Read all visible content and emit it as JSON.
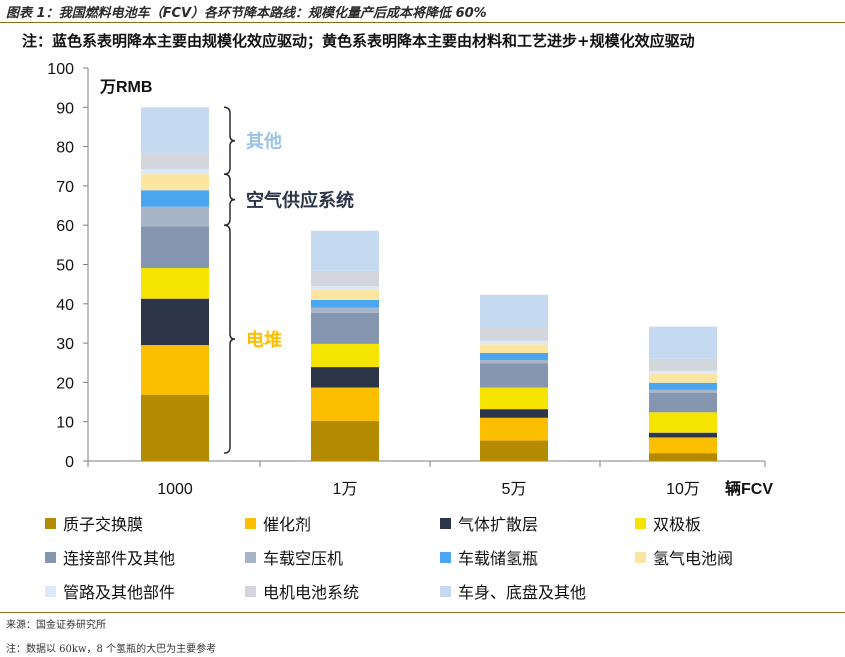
{
  "figure_title": "图表 1：我国燃料电池车（FCV）各环节降本路线：规模化量产后成本将降低 60%",
  "note": "注：蓝色系表明降本主要由规模化效应驱动；黄色系表明降本主要由材料和工艺进步+规模化效应驱动",
  "source": "来源：国金证券研究所",
  "footnote": "注：数据以 60kw，8 个氢瓶的大巴为主要参考",
  "colors": {
    "质子交换膜": "#b38a00",
    "催化剂": "#fbbf00",
    "气体扩散层": "#2d3648",
    "双极板": "#f5e300",
    "连接部件及其他": "#8597b0",
    "车载空压机": "#a8b4c8",
    "车载储氢瓶": "#4aa6f0",
    "氢气电池阀": "#fbe5a0",
    "管路及其他部件": "#dbe9f8",
    "电机电池系统": "#d3d6dc",
    "车身、底盘及其他": "#c5daf0",
    "bracket": "#2b2b2b",
    "label_other": "#9cc3ea",
    "label_air": "#2d3648",
    "label_stack": "#fbbf00"
  },
  "chart_data": {
    "type": "bar",
    "stacked": true,
    "categories": [
      "1000",
      "1万",
      "5万",
      "10万"
    ],
    "xlabel": "辆FCV",
    "ylabel": "万RMB",
    "ylim": [
      0,
      100
    ],
    "yticks": [
      0,
      10,
      20,
      30,
      40,
      50,
      60,
      70,
      80,
      90,
      100
    ],
    "series": [
      {
        "name": "质子交换膜",
        "values": [
          16.8,
          10.2,
          5.2,
          2.0
        ]
      },
      {
        "name": "催化剂",
        "values": [
          12.7,
          8.5,
          5.8,
          4.0
        ]
      },
      {
        "name": "气体扩散层",
        "values": [
          11.8,
          5.2,
          2.2,
          1.2
        ]
      },
      {
        "name": "双极板",
        "values": [
          7.8,
          5.9,
          5.5,
          5.2
        ]
      },
      {
        "name": "连接部件及其他",
        "values": [
          10.6,
          7.9,
          6.2,
          5.0
        ]
      },
      {
        "name": "车载空压机",
        "values": [
          5.0,
          1.3,
          0.8,
          0.7
        ]
      },
      {
        "name": "车载储氢瓶",
        "values": [
          4.2,
          2.0,
          1.8,
          1.8
        ]
      },
      {
        "name": "氢气电池阀",
        "values": [
          4.1,
          2.5,
          2.2,
          2.3
        ]
      },
      {
        "name": "管路及其他部件",
        "values": [
          1.2,
          1.0,
          0.9,
          0.8
        ]
      },
      {
        "name": "电机电池系统",
        "values": [
          4.0,
          3.9,
          3.5,
          3.0
        ]
      },
      {
        "name": "车身、底盘及其他",
        "values": [
          11.8,
          10.2,
          8.2,
          8.2
        ]
      }
    ],
    "annotations": [
      {
        "text": "其他",
        "y_range": [
          73,
          90
        ],
        "color_key": "label_other"
      },
      {
        "text": "空气供应系统",
        "y_range": [
          60,
          73
        ],
        "color_key": "label_air"
      },
      {
        "text": "电堆",
        "y_range": [
          2,
          60
        ],
        "color_key": "label_stack"
      }
    ],
    "legend": {
      "position": "bottom",
      "entries": [
        "质子交换膜",
        "催化剂",
        "气体扩散层",
        "双极板",
        "连接部件及其他",
        "车载空压机",
        "车载储氢瓶",
        "氢气电池阀",
        "管路及其他部件",
        "电机电池系统",
        "车身、底盘及其他"
      ]
    }
  }
}
